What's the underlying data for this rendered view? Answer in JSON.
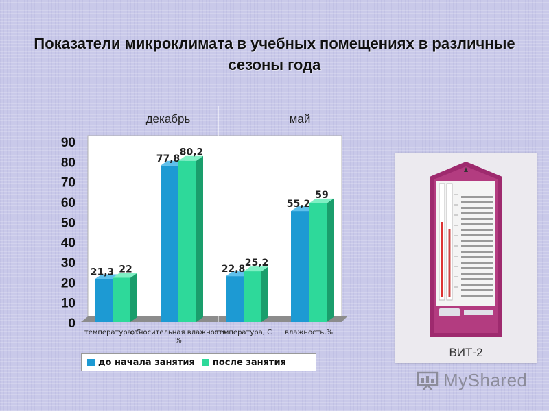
{
  "title": "Показатели микроклимата в учебных помещениях в различные сезоны года",
  "sections": [
    "декабрь",
    "май"
  ],
  "device_label": "ВИТ-2",
  "watermark_text": "MyShared",
  "colors": {
    "series1": "#1d9ad3",
    "series2": "#2ed99a",
    "background": "#c9c9e9",
    "device_body": "#9e2a6e"
  },
  "chart_data": {
    "type": "bar",
    "categories": [
      "температура, С",
      "относительная влажность %",
      "температура, С",
      "влажность,%"
    ],
    "series": [
      {
        "name": "до начала занятия",
        "values": [
          21.3,
          77.8,
          22.8,
          55.2
        ],
        "labels": [
          "21,3",
          "77,8",
          "22,8",
          "55,2"
        ]
      },
      {
        "name": "после занятия",
        "values": [
          22,
          80.2,
          25.2,
          59
        ],
        "labels": [
          "22",
          "80,2",
          "25,2",
          "59"
        ]
      }
    ],
    "ylim": [
      0,
      90
    ],
    "yticks": [
      0,
      10,
      20,
      30,
      40,
      50,
      60,
      70,
      80,
      90
    ],
    "grid": false,
    "legend": "bottom"
  }
}
